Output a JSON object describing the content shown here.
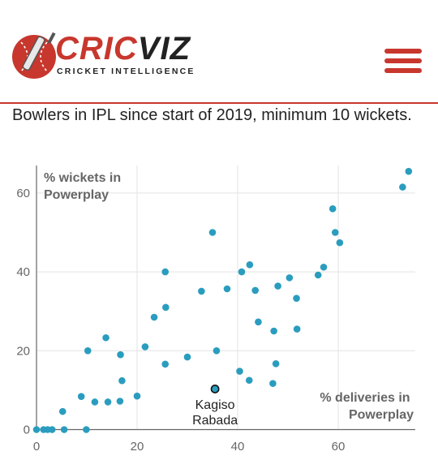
{
  "header": {
    "brand_part1": "CRIC",
    "brand_part2": "VIZ",
    "tagline": "CRICKET INTELLIGENCE",
    "menu_icon": "hamburger-menu-icon",
    "logo_icon": "cricket-ball-bat-icon"
  },
  "subtitle": "Bowlers in IPL since start of 2019, minimum 10 wickets.",
  "colors": {
    "accent": "#c8372d",
    "point": "#2a9dbf",
    "highlight": "#2a9dbf",
    "grid": "#e3e3e3",
    "axis": "#666666"
  },
  "chart_data": {
    "type": "scatter",
    "xlabel_lines": [
      "% deliveries in",
      "Powerplay"
    ],
    "ylabel_lines": [
      "% wickets in",
      "Powerplay"
    ],
    "xlim": [
      0,
      75
    ],
    "ylim": [
      0,
      66
    ],
    "xticks": [
      0,
      20,
      40,
      60
    ],
    "yticks": [
      0,
      20,
      40,
      60
    ],
    "grid": true,
    "points": [
      {
        "x": 0,
        "y": 0
      },
      {
        "x": 1.4,
        "y": 0
      },
      {
        "x": 2.2,
        "y": 0
      },
      {
        "x": 3.1,
        "y": 0
      },
      {
        "x": 5.5,
        "y": 0
      },
      {
        "x": 9.9,
        "y": 0
      },
      {
        "x": 5.2,
        "y": 4.6
      },
      {
        "x": 8.9,
        "y": 8.4
      },
      {
        "x": 11.6,
        "y": 7.0
      },
      {
        "x": 14.2,
        "y": 7.0
      },
      {
        "x": 16.6,
        "y": 7.2
      },
      {
        "x": 20.0,
        "y": 8.5
      },
      {
        "x": 17.0,
        "y": 12.4
      },
      {
        "x": 10.2,
        "y": 20.0
      },
      {
        "x": 13.8,
        "y": 23.3
      },
      {
        "x": 16.7,
        "y": 19.0
      },
      {
        "x": 21.6,
        "y": 21.0
      },
      {
        "x": 25.6,
        "y": 16.6
      },
      {
        "x": 23.4,
        "y": 28.5
      },
      {
        "x": 25.7,
        "y": 31.0
      },
      {
        "x": 25.6,
        "y": 40.0
      },
      {
        "x": 30.0,
        "y": 18.4
      },
      {
        "x": 32.8,
        "y": 35.1
      },
      {
        "x": 35.0,
        "y": 50.0
      },
      {
        "x": 35.8,
        "y": 20.0
      },
      {
        "x": 37.9,
        "y": 35.7
      },
      {
        "x": 40.4,
        "y": 14.8
      },
      {
        "x": 40.8,
        "y": 40.0
      },
      {
        "x": 42.4,
        "y": 41.8
      },
      {
        "x": 42.3,
        "y": 12.5
      },
      {
        "x": 43.5,
        "y": 35.3
      },
      {
        "x": 44.1,
        "y": 27.3
      },
      {
        "x": 47.0,
        "y": 11.7
      },
      {
        "x": 47.2,
        "y": 25.0
      },
      {
        "x": 47.6,
        "y": 16.7
      },
      {
        "x": 48.0,
        "y": 36.4
      },
      {
        "x": 50.3,
        "y": 38.5
      },
      {
        "x": 51.7,
        "y": 33.3
      },
      {
        "x": 51.8,
        "y": 25.5
      },
      {
        "x": 56.0,
        "y": 39.2
      },
      {
        "x": 57.1,
        "y": 41.2
      },
      {
        "x": 58.9,
        "y": 56.0
      },
      {
        "x": 59.4,
        "y": 50.0
      },
      {
        "x": 60.3,
        "y": 47.4
      },
      {
        "x": 72.8,
        "y": 61.5
      },
      {
        "x": 74.0,
        "y": 65.5
      }
    ],
    "highlight": {
      "x": 35.5,
      "y": 10.3,
      "label_lines": [
        "Kagiso",
        "Rabada"
      ]
    }
  }
}
